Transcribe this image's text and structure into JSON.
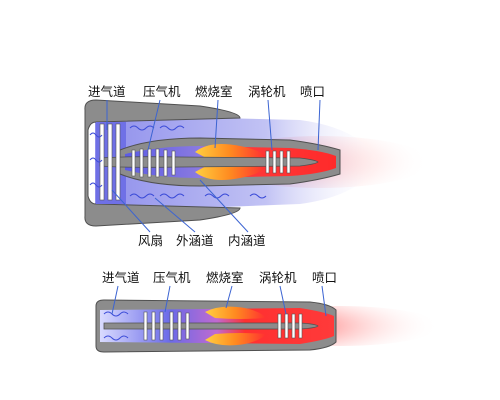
{
  "colors": {
    "casing": "#8c8c8c",
    "casing_edge": "#505050",
    "cold_air": "#5a5ae6",
    "bypass_air": "#b9bcf2",
    "flame_orange": "#ffb030",
    "hot_core": "#ff2a2a",
    "exhaust_plume": "#ff8f8f",
    "blade": "#ffffff",
    "leader_line": "#3c64d2"
  },
  "diagrams": [
    {
      "engine_type": "turbofan",
      "top_labels": [
        {
          "text": "进气道"
        },
        {
          "text": "压气机"
        },
        {
          "text": "燃烧室"
        },
        {
          "text": "涡轮机"
        },
        {
          "text": "喷口"
        }
      ],
      "bottom_labels": [
        {
          "text": "风扇"
        },
        {
          "text": "外涵道"
        },
        {
          "text": "内涵道"
        }
      ]
    },
    {
      "engine_type": "turbojet",
      "top_labels": [
        {
          "text": "进气道"
        },
        {
          "text": "压气机"
        },
        {
          "text": "燃烧室"
        },
        {
          "text": "涡轮机"
        },
        {
          "text": "喷口"
        }
      ],
      "bottom_labels": []
    }
  ]
}
